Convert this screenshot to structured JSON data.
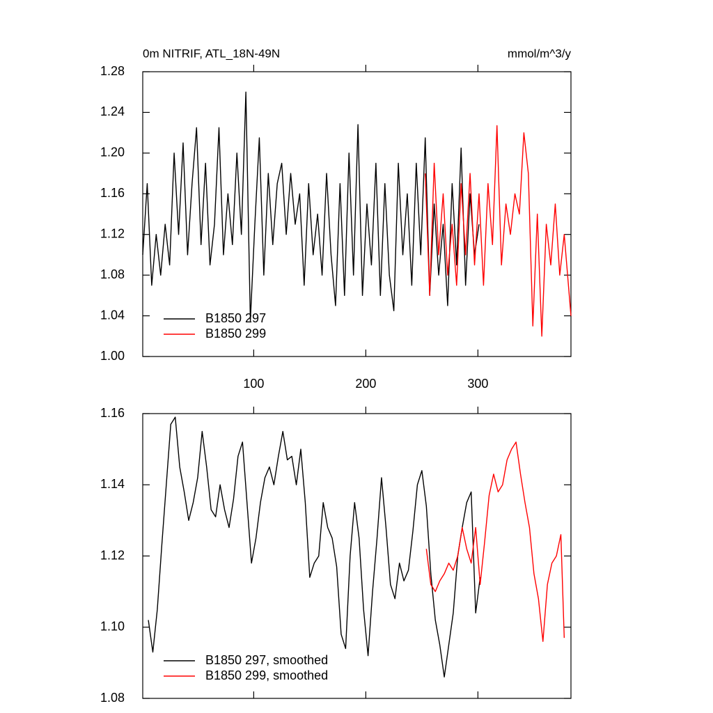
{
  "chart_data": [
    {
      "type": "line",
      "title": "0m NITRIF, ATL_18N-49N",
      "units": "mmol/m^3/y",
      "xlim": [
        1,
        383
      ],
      "xticks": [
        100,
        200,
        300
      ],
      "ylim": [
        1.0,
        1.28
      ],
      "yticks": [
        {
          "value": 1.0,
          "label": "1.00"
        },
        1.04,
        1.08,
        1.12,
        1.16,
        {
          "value": 1.2,
          "label": "1.20"
        },
        1.24,
        1.28
      ],
      "legend": "lower left",
      "series": [
        {
          "name": "B1850 297",
          "color": "#000000",
          "x": [
            1,
            5,
            9,
            13,
            17,
            21,
            25,
            29,
            33,
            37,
            41,
            45,
            49,
            53,
            57,
            61,
            65,
            69,
            73,
            77,
            81,
            85,
            89,
            93,
            97,
            101,
            105,
            109,
            113,
            117,
            121,
            125,
            129,
            133,
            137,
            141,
            145,
            149,
            153,
            157,
            161,
            165,
            169,
            173,
            177,
            181,
            185,
            189,
            193,
            197,
            201,
            205,
            209,
            213,
            217,
            221,
            225,
            229,
            233,
            237,
            241,
            245,
            249,
            253,
            257,
            261,
            265,
            269,
            273,
            277,
            281,
            285,
            289,
            293,
            297,
            301
          ],
          "values": [
            1.1,
            1.17,
            1.07,
            1.12,
            1.08,
            1.13,
            1.09,
            1.2,
            1.12,
            1.21,
            1.1,
            1.17,
            1.225,
            1.11,
            1.19,
            1.09,
            1.13,
            1.225,
            1.1,
            1.16,
            1.11,
            1.2,
            1.12,
            1.26,
            1.035,
            1.13,
            1.215,
            1.08,
            1.18,
            1.11,
            1.17,
            1.19,
            1.12,
            1.18,
            1.13,
            1.16,
            1.07,
            1.17,
            1.1,
            1.14,
            1.08,
            1.18,
            1.1,
            1.05,
            1.17,
            1.06,
            1.2,
            1.08,
            1.228,
            1.06,
            1.15,
            1.09,
            1.19,
            1.06,
            1.17,
            1.08,
            1.045,
            1.19,
            1.1,
            1.16,
            1.07,
            1.19,
            1.1,
            1.215,
            1.06,
            1.15,
            1.08,
            1.13,
            1.05,
            1.17,
            1.09,
            1.205,
            1.07,
            1.16,
            1.1,
            1.13
          ]
        },
        {
          "name": "B1850 299",
          "color": "#ff0000",
          "x": [
            253,
            257,
            261,
            265,
            269,
            273,
            277,
            281,
            285,
            289,
            293,
            297,
            301,
            305,
            309,
            313,
            317,
            321,
            325,
            329,
            333,
            337,
            341,
            345,
            349,
            353,
            357,
            361,
            365,
            369,
            373,
            377,
            383
          ],
          "values": [
            1.18,
            1.06,
            1.19,
            1.1,
            1.16,
            1.08,
            1.13,
            1.07,
            1.17,
            1.1,
            1.18,
            1.09,
            1.16,
            1.07,
            1.17,
            1.11,
            1.227,
            1.09,
            1.15,
            1.12,
            1.16,
            1.14,
            1.22,
            1.18,
            1.03,
            1.14,
            1.02,
            1.13,
            1.09,
            1.15,
            1.08,
            1.12,
            1.04
          ]
        }
      ]
    },
    {
      "type": "line",
      "xlim": [
        1,
        383
      ],
      "xticks": [
        100,
        200,
        300
      ],
      "ylim": [
        1.08,
        1.16
      ],
      "yticks": [
        1.08,
        {
          "value": 1.1,
          "label": "1.10"
        },
        1.12,
        1.14,
        1.16
      ],
      "legend": "lower left",
      "series": [
        {
          "name": "B1850 297, smoothed",
          "color": "#000000",
          "x": [
            6,
            10,
            14,
            18,
            22,
            26,
            30,
            34,
            38,
            42,
            46,
            50,
            54,
            58,
            62,
            66,
            70,
            74,
            78,
            82,
            86,
            90,
            94,
            98,
            102,
            106,
            110,
            114,
            118,
            122,
            126,
            130,
            134,
            138,
            142,
            146,
            150,
            154,
            158,
            162,
            166,
            170,
            174,
            178,
            182,
            186,
            190,
            194,
            198,
            202,
            206,
            210,
            214,
            218,
            222,
            226,
            230,
            234,
            238,
            242,
            246,
            250,
            254,
            258,
            262,
            266,
            270,
            274,
            278,
            282,
            286,
            290,
            294,
            298,
            302
          ],
          "values": [
            1.102,
            1.093,
            1.105,
            1.123,
            1.14,
            1.157,
            1.159,
            1.145,
            1.138,
            1.13,
            1.135,
            1.142,
            1.155,
            1.145,
            1.133,
            1.131,
            1.14,
            1.133,
            1.128,
            1.136,
            1.148,
            1.152,
            1.135,
            1.118,
            1.125,
            1.135,
            1.142,
            1.145,
            1.14,
            1.148,
            1.155,
            1.147,
            1.148,
            1.14,
            1.15,
            1.135,
            1.114,
            1.118,
            1.12,
            1.135,
            1.128,
            1.125,
            1.117,
            1.098,
            1.094,
            1.12,
            1.135,
            1.125,
            1.105,
            1.092,
            1.11,
            1.125,
            1.142,
            1.128,
            1.112,
            1.108,
            1.118,
            1.113,
            1.116,
            1.127,
            1.14,
            1.144,
            1.134,
            1.115,
            1.102,
            1.095,
            1.086,
            1.095,
            1.104,
            1.12,
            1.128,
            1.135,
            1.138,
            1.104,
            1.114
          ]
        },
        {
          "name": "B1850 299, smoothed",
          "color": "#ff0000",
          "x": [
            254,
            258,
            262,
            266,
            270,
            274,
            278,
            282,
            286,
            290,
            294,
            298,
            302,
            306,
            310,
            314,
            318,
            322,
            326,
            330,
            334,
            338,
            342,
            346,
            350,
            354,
            358,
            362,
            366,
            370,
            374,
            377
          ],
          "values": [
            1.122,
            1.112,
            1.11,
            1.113,
            1.115,
            1.118,
            1.116,
            1.12,
            1.128,
            1.122,
            1.118,
            1.128,
            1.112,
            1.124,
            1.137,
            1.143,
            1.138,
            1.14,
            1.147,
            1.15,
            1.152,
            1.143,
            1.135,
            1.128,
            1.115,
            1.108,
            1.096,
            1.112,
            1.118,
            1.12,
            1.126,
            1.097
          ]
        }
      ]
    }
  ]
}
